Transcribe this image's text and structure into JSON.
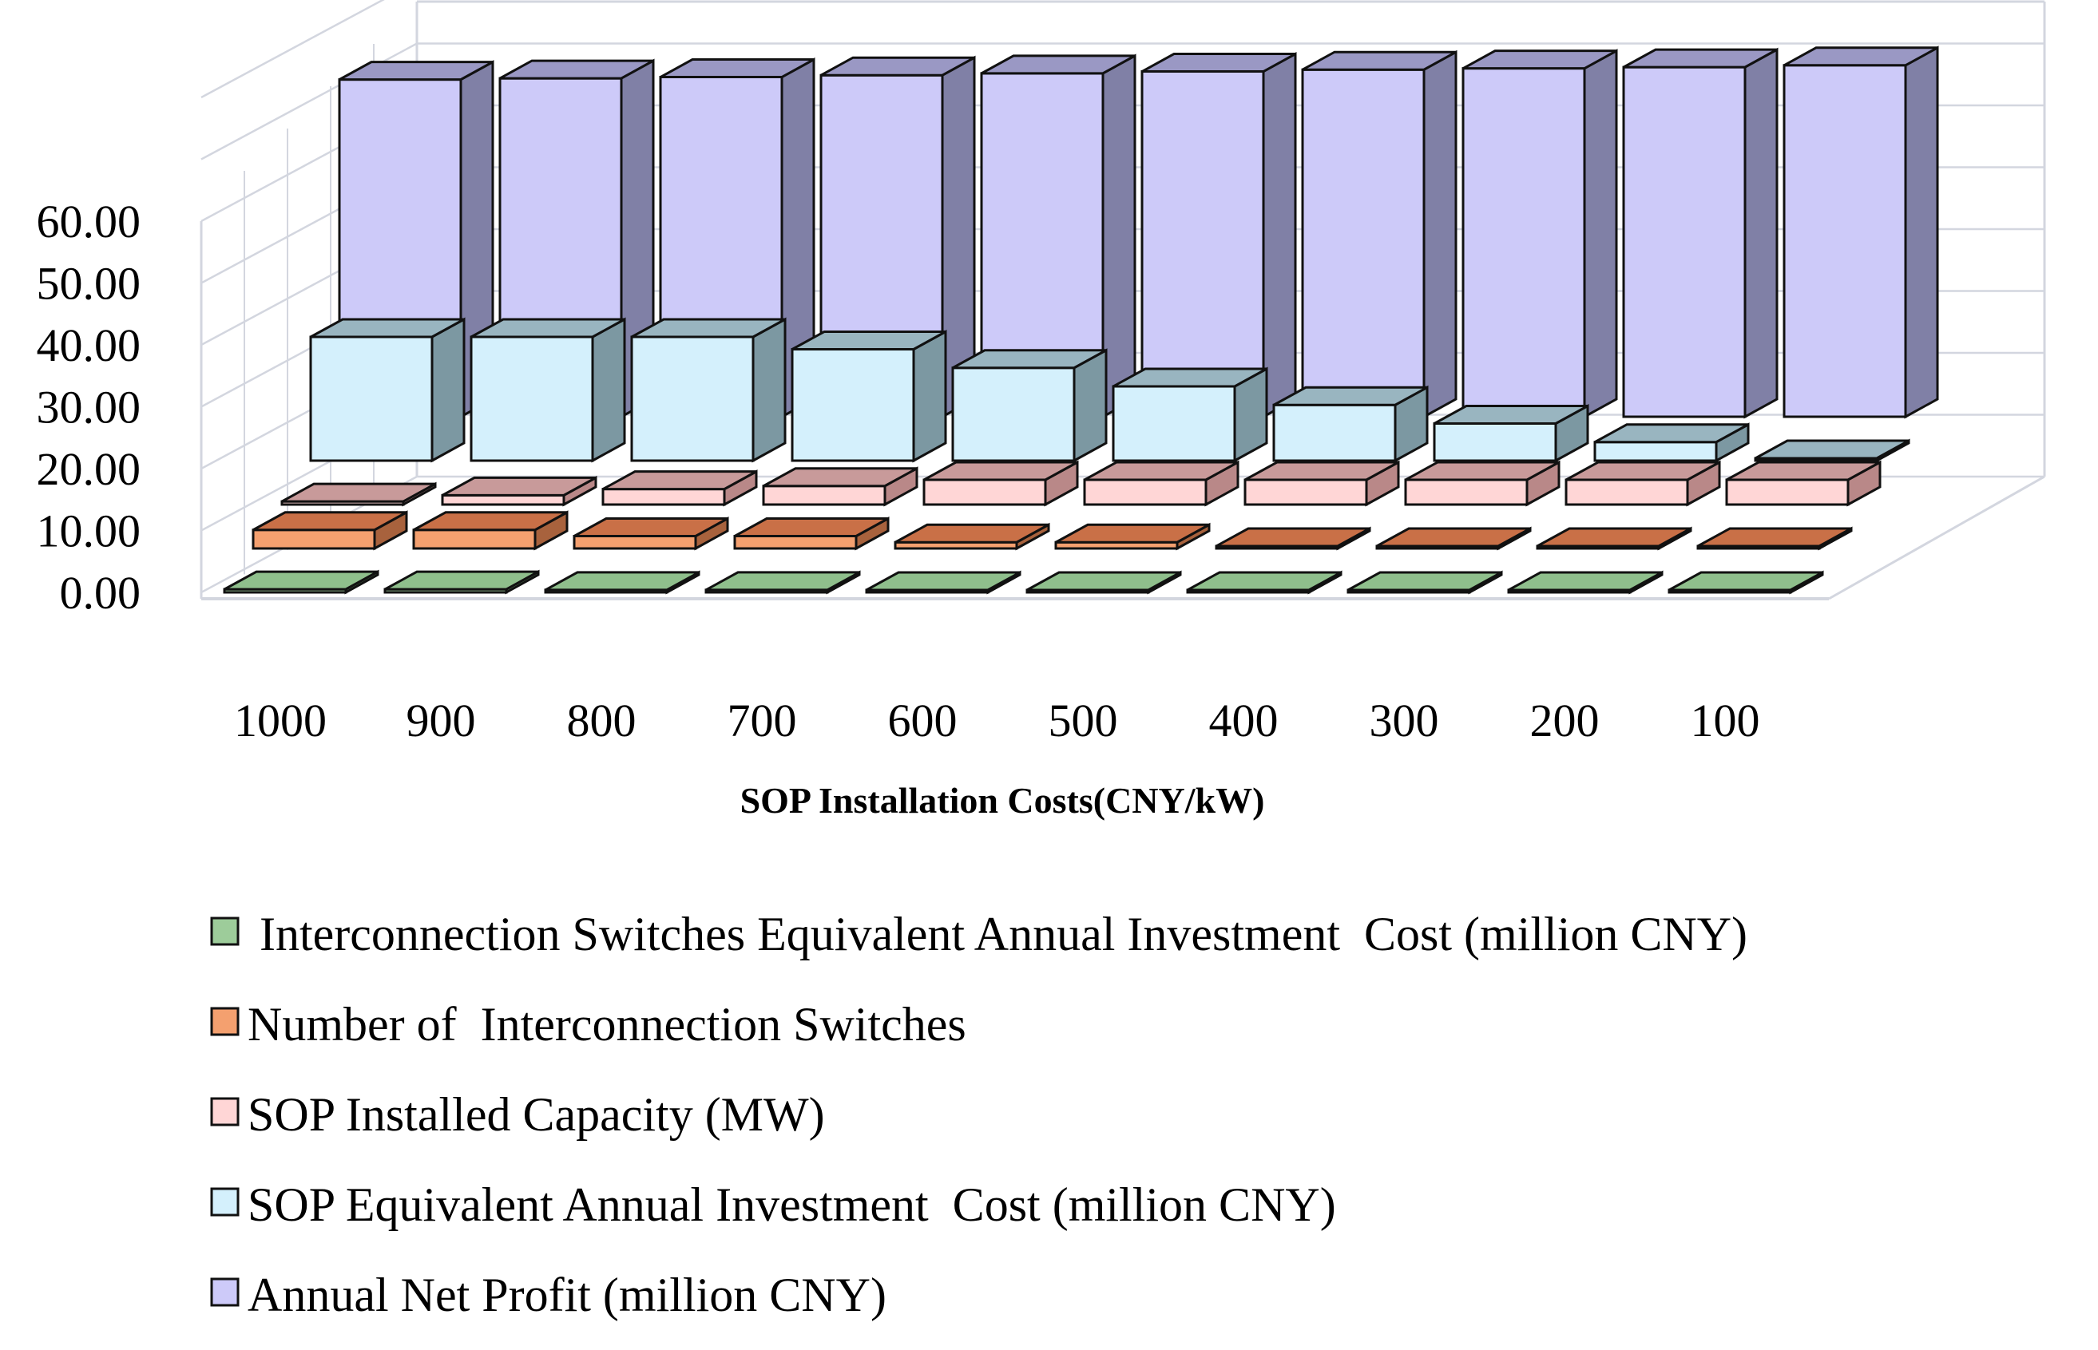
{
  "chart_data": {
    "type": "bar",
    "subtype": "3d-clustered-depth",
    "title": "",
    "xlabel": "SOP Installation Costs(CNY/kW)",
    "ylabel": "",
    "ylim": [
      0,
      60
    ],
    "yticks": [
      "0.00",
      "10.00",
      "20.00",
      "30.00",
      "40.00",
      "50.00",
      "60.00"
    ],
    "categories": [
      "1000",
      "900",
      "800",
      "700",
      "600",
      "500",
      "400",
      "300",
      "200",
      "100"
    ],
    "legend_position": "bottom",
    "series": [
      {
        "name": "Interconnection Switches Equivalent Annual Investment  Cost (million CNY)",
        "legend_label": " Interconnection Switches Equivalent Annual Investment  Cost (million CNY)",
        "values": [
          0.5,
          0.5,
          0.4,
          0.4,
          0.3,
          0.3,
          0.0,
          0.0,
          0.0,
          0.0
        ],
        "front": "#9dcc9a",
        "side": "#5f8f5d",
        "top": "#8fbf8c"
      },
      {
        "name": "Number of  Interconnection Switches",
        "legend_label": "Number of  Interconnection Switches",
        "values": [
          3,
          3,
          2,
          2,
          1,
          1,
          0,
          0,
          0,
          0
        ],
        "front": "#f4a06f",
        "side": "#a8623d",
        "top": "#c97047"
      },
      {
        "name": "SOP Installed Capacity (MW)",
        "legend_label": "SOP Installed Capacity (MW)",
        "values": [
          0.5,
          1.5,
          2.5,
          3,
          4,
          4,
          4,
          4,
          4,
          4
        ],
        "front": "#ffd6d6",
        "side": "#b98888",
        "top": "#c89a9a"
      },
      {
        "name": "SOP Equivalent Annual Investment  Cost (million CNY)",
        "legend_label": "SOP Equivalent Annual Investment  Cost (million CNY)",
        "values": [
          20,
          20,
          20,
          18,
          15,
          12,
          9,
          6,
          3,
          0.3
        ],
        "front": "#d4f0fc",
        "side": "#7c98a2",
        "top": "#99b5c0"
      },
      {
        "name": "Annual Net Profit (million CNY)",
        "legend_label": "Annual Net Profit (million CNY)",
        "values": [
          54.5,
          54.7,
          54.9,
          55.2,
          55.5,
          55.8,
          56.1,
          56.3,
          56.5,
          56.8
        ],
        "front": "#cdcaf9",
        "side": "#8080a6",
        "top": "#9a98c4"
      }
    ]
  }
}
